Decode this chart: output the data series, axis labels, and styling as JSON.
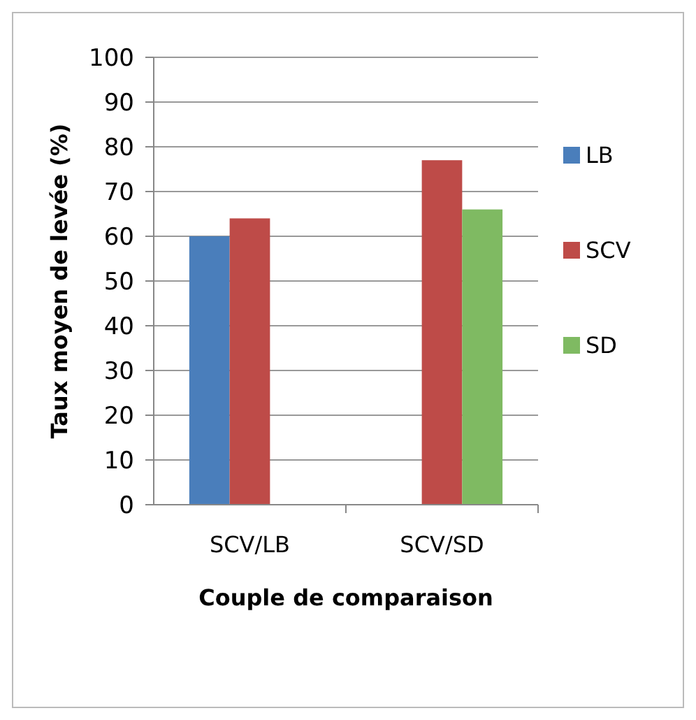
{
  "chart_data": {
    "type": "bar",
    "xlabel": "Couple de comparaison",
    "ylabel": "Taux moyen de levée (%)",
    "categories": [
      "SCV/LB",
      "SCV/SD"
    ],
    "series": [
      {
        "name": "LB",
        "color": "#4a7ebb",
        "values": [
          60,
          null
        ]
      },
      {
        "name": "SCV",
        "color": "#be4b48",
        "values": [
          64,
          77
        ]
      },
      {
        "name": "SD",
        "color": "#7fba62",
        "values": [
          null,
          66
        ]
      }
    ],
    "ylim": [
      0,
      100
    ],
    "yticks": [
      0,
      10,
      20,
      30,
      40,
      50,
      60,
      70,
      80,
      90,
      100
    ],
    "grid": "y",
    "legend": "right"
  }
}
